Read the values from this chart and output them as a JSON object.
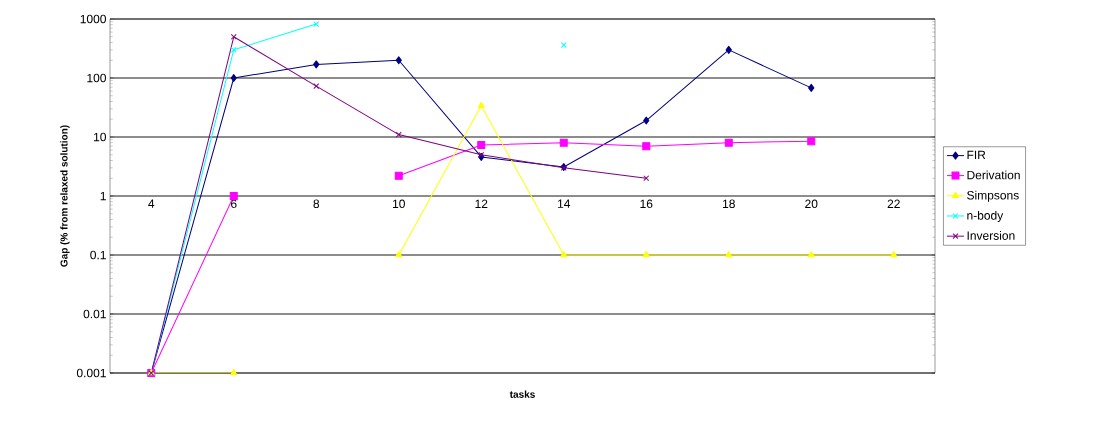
{
  "chart_data": {
    "type": "line",
    "xlabel": "tasks",
    "ylabel": "Gap (% from relaxed solution)",
    "categories": [
      "4",
      "6",
      "8",
      "10",
      "12",
      "14",
      "16",
      "18",
      "20",
      "22"
    ],
    "series": [
      {
        "name": "FIR",
        "color": "#000080",
        "marker": "diamond",
        "values": [
          0.001,
          100,
          170,
          200,
          4.6,
          3.1,
          19,
          300,
          68,
          null
        ]
      },
      {
        "name": "Derivation",
        "color": "#ff00ff",
        "marker": "square",
        "values": [
          0.001,
          1,
          null,
          2.2,
          7.3,
          8,
          7,
          8,
          8.5,
          null
        ]
      },
      {
        "name": "Simpsons",
        "color": "#ffff00",
        "marker": "triangle",
        "values": [
          0.001,
          0.001,
          null,
          0.1,
          34,
          0.1,
          0.1,
          0.1,
          0.1,
          0.1
        ]
      },
      {
        "name": "n-body",
        "color": "#00ffff",
        "marker": "cross",
        "values": [
          0.001,
          300,
          820,
          null,
          null,
          360,
          null,
          null,
          null,
          null
        ]
      },
      {
        "name": "Inversion",
        "color": "#800080",
        "marker": "cross",
        "values": [
          0.001,
          500,
          73,
          11,
          5,
          3,
          2,
          null,
          null,
          null
        ]
      }
    ],
    "log": "y",
    "ylim": [
      0.001,
      1000
    ],
    "yticks": [
      0.001,
      0.01,
      0.1,
      1,
      10,
      100,
      1000
    ],
    "grid": "y",
    "legend": "right"
  }
}
